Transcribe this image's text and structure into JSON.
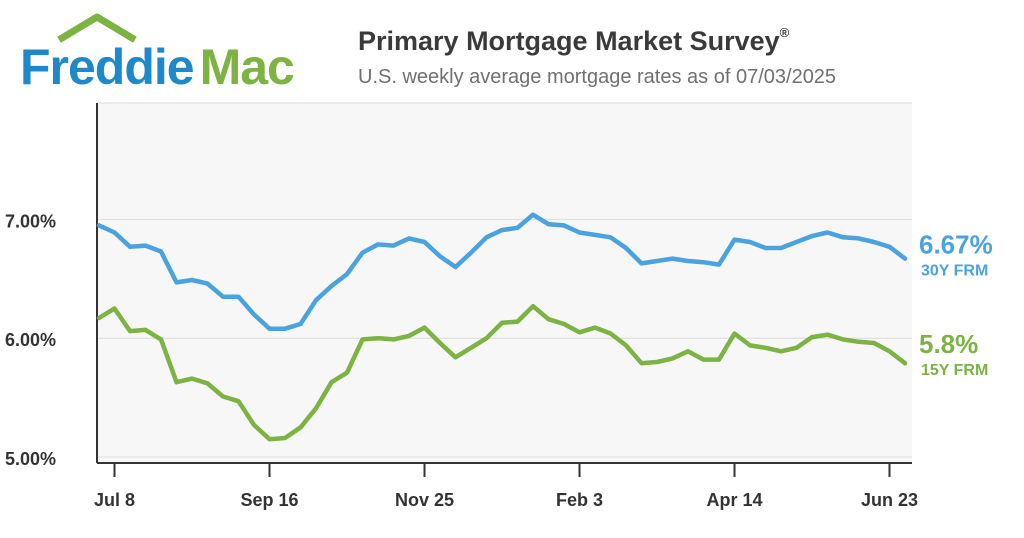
{
  "brand": {
    "name_part1": "Freddie",
    "name_part2": "Mac",
    "color_blue": "#1e88c9",
    "color_green": "#7cb342"
  },
  "header": {
    "title": "Primary Mortgage Market Survey",
    "title_mark": "®",
    "subtitle": "U.S. weekly average mortgage rates as of 07/03/2025"
  },
  "chart_data": {
    "type": "line",
    "title": "Primary Mortgage Market Survey",
    "subtitle": "U.S. weekly average mortgage rates as of 07/03/2025",
    "xlabel": "",
    "ylabel": "",
    "x_tick_labels": [
      "Jul 8",
      "Sep 16",
      "Nov 25",
      "Feb 3",
      "Apr 14",
      "Jun 23"
    ],
    "x_tick_index": [
      1,
      11,
      21,
      31,
      41,
      51
    ],
    "y_tick_labels": [
      "7.00%",
      "6.00%",
      "5.00%"
    ],
    "y_tick_values": [
      7.0,
      6.0,
      5.0
    ],
    "ylim": [
      4.95,
      7.98
    ],
    "grid": true,
    "series": [
      {
        "name": "30Y FRM",
        "color": "#4aa3df",
        "end_label": "6.67%",
        "values": [
          6.95,
          6.89,
          6.77,
          6.78,
          6.73,
          6.47,
          6.49,
          6.46,
          6.35,
          6.35,
          6.2,
          6.08,
          6.08,
          6.12,
          6.32,
          6.44,
          6.54,
          6.72,
          6.79,
          6.78,
          6.84,
          6.81,
          6.69,
          6.6,
          6.72,
          6.85,
          6.91,
          6.93,
          7.04,
          6.96,
          6.95,
          6.89,
          6.87,
          6.85,
          6.76,
          6.63,
          6.65,
          6.67,
          6.65,
          6.64,
          6.62,
          6.83,
          6.81,
          6.76,
          6.76,
          6.81,
          6.86,
          6.89,
          6.85,
          6.84,
          6.81,
          6.77,
          6.67
        ]
      },
      {
        "name": "15Y FRM",
        "color": "#7cb342",
        "end_label": "5.8%",
        "values": [
          6.17,
          6.25,
          6.06,
          6.07,
          5.99,
          5.63,
          5.66,
          5.62,
          5.51,
          5.47,
          5.27,
          5.15,
          5.16,
          5.25,
          5.41,
          5.63,
          5.71,
          5.99,
          6.0,
          5.99,
          6.02,
          6.09,
          5.96,
          5.84,
          5.92,
          6.0,
          6.13,
          6.14,
          6.27,
          6.16,
          6.12,
          6.05,
          6.09,
          6.04,
          5.94,
          5.79,
          5.8,
          5.83,
          5.89,
          5.82,
          5.82,
          6.04,
          5.94,
          5.92,
          5.89,
          5.92,
          6.01,
          6.03,
          5.99,
          5.97,
          5.96,
          5.89,
          5.79
        ]
      }
    ]
  }
}
